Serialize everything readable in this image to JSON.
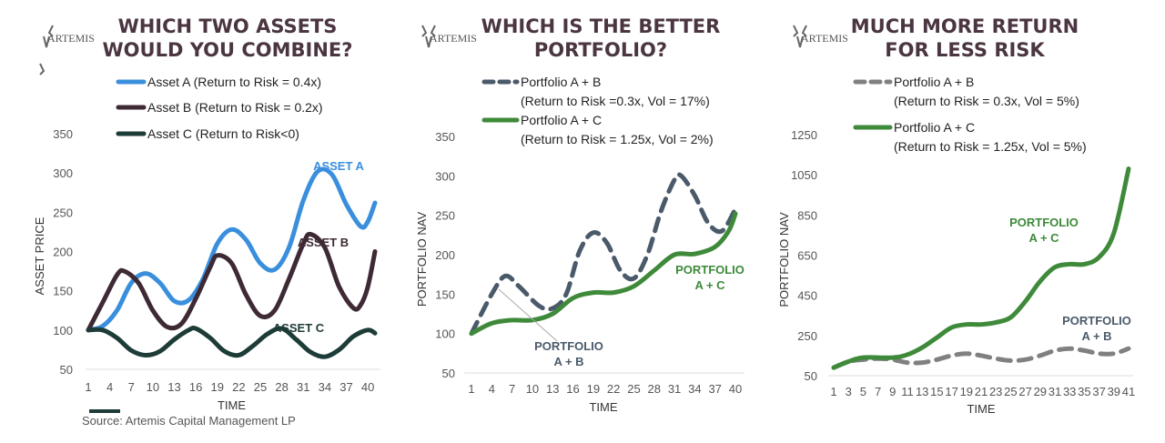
{
  "brand": "ARTEMIS",
  "source": "Source:  Artemis  Capital  Management  LP",
  "chart_data": [
    {
      "type": "line",
      "title": [
        "WHICH TWO ASSETS",
        "WOULD YOU COMBINE?"
      ],
      "xlabel": "TIME",
      "ylabel": "ASSET PRICE",
      "ylim": [
        50,
        350
      ],
      "yticks": [
        50,
        100,
        150,
        200,
        250,
        300,
        350
      ],
      "xticks": [
        1,
        4,
        7,
        10,
        13,
        16,
        19,
        22,
        25,
        28,
        31,
        34,
        37,
        40
      ],
      "xlim": [
        1,
        41
      ],
      "series": [
        {
          "name": "Asset A (Return to Risk = 0.4x)",
          "label": "ASSET A",
          "color": "#3a8fdd",
          "dash": false,
          "points": [
            [
              1,
              100
            ],
            [
              3,
              105
            ],
            [
              5,
              125
            ],
            [
              7,
              160
            ],
            [
              9,
              172
            ],
            [
              11,
              160
            ],
            [
              13,
              137
            ],
            [
              15,
              138
            ],
            [
              17,
              165
            ],
            [
              19,
              210
            ],
            [
              21,
              228
            ],
            [
              23,
              215
            ],
            [
              25,
              185
            ],
            [
              27,
              177
            ],
            [
              29,
              205
            ],
            [
              31,
              265
            ],
            [
              33,
              302
            ],
            [
              35,
              298
            ],
            [
              37,
              260
            ],
            [
              39,
              232
            ],
            [
              40,
              238
            ],
            [
              41,
              262
            ]
          ]
        },
        {
          "name": "Asset B (Return to Risk = 0.2x)",
          "label": "ASSET B",
          "color": "#3e2a35",
          "dash": false,
          "points": [
            [
              1,
              100
            ],
            [
              3,
              135
            ],
            [
              5,
              170
            ],
            [
              6,
              175
            ],
            [
              8,
              160
            ],
            [
              10,
              125
            ],
            [
              12,
              104
            ],
            [
              14,
              108
            ],
            [
              16,
              140
            ],
            [
              18,
              180
            ],
            [
              19,
              195
            ],
            [
              21,
              185
            ],
            [
              23,
              145
            ],
            [
              25,
              118
            ],
            [
              27,
              125
            ],
            [
              29,
              165
            ],
            [
              31,
              210
            ],
            [
              32,
              222
            ],
            [
              34,
              205
            ],
            [
              36,
              155
            ],
            [
              38,
              128
            ],
            [
              39,
              132
            ],
            [
              40,
              155
            ],
            [
              41,
              200
            ]
          ]
        },
        {
          "name": "Asset C (Return to Risk<0)",
          "label": "ASSET C",
          "color": "#1d3b37",
          "dash": false,
          "points": [
            [
              1,
              100
            ],
            [
              3,
              100
            ],
            [
              5,
              90
            ],
            [
              7,
              74
            ],
            [
              9,
              68
            ],
            [
              11,
              73
            ],
            [
              13,
              88
            ],
            [
              15,
              100
            ],
            [
              16,
              102
            ],
            [
              18,
              90
            ],
            [
              20,
              73
            ],
            [
              22,
              68
            ],
            [
              24,
              80
            ],
            [
              26,
              95
            ],
            [
              28,
              102
            ],
            [
              30,
              88
            ],
            [
              32,
              72
            ],
            [
              34,
              66
            ],
            [
              36,
              75
            ],
            [
              38,
              92
            ],
            [
              40,
              100
            ],
            [
              41,
              96
            ]
          ]
        }
      ]
    },
    {
      "type": "line",
      "title": [
        "WHICH IS THE BETTER",
        "PORTFOLIO?"
      ],
      "xlabel": "TIME",
      "ylabel": "PORTFOLIO NAV",
      "ylim": [
        50,
        350
      ],
      "yticks": [
        50,
        100,
        150,
        200,
        250,
        300,
        350
      ],
      "xticks": [
        1,
        4,
        7,
        10,
        13,
        16,
        19,
        22,
        25,
        28,
        31,
        34,
        37,
        40
      ],
      "xlim": [
        1,
        40
      ],
      "series": [
        {
          "name": "Portfolio A + B",
          "name2": "(Return to Risk =0.3x, Vol = 17%)",
          "label": [
            "PORTFOLIO",
            "A + B"
          ],
          "color": "#4a5a6a",
          "dash": true,
          "points": [
            [
              1,
              100
            ],
            [
              4,
              150
            ],
            [
              6,
              173
            ],
            [
              8,
              160
            ],
            [
              11,
              135
            ],
            [
              13,
              132
            ],
            [
              15,
              150
            ],
            [
              17,
              205
            ],
            [
              19,
              228
            ],
            [
              21,
              215
            ],
            [
              23,
              180
            ],
            [
              25,
              170
            ],
            [
              27,
              200
            ],
            [
              29,
              255
            ],
            [
              31,
              295
            ],
            [
              32,
              300
            ],
            [
              34,
              275
            ],
            [
              36,
              240
            ],
            [
              38,
              230
            ],
            [
              40,
              258
            ]
          ]
        },
        {
          "name": "Portfolio A + C",
          "name2": "(Return to Risk = 1.25x, Vol = 2%)",
          "label": [
            "PORTFOLIO",
            "A + C"
          ],
          "color": "#3e8a3a",
          "dash": false,
          "points": [
            [
              1,
              100
            ],
            [
              4,
              113
            ],
            [
              7,
              117
            ],
            [
              10,
              117
            ],
            [
              13,
              125
            ],
            [
              16,
              145
            ],
            [
              19,
              152
            ],
            [
              22,
              152
            ],
            [
              25,
              160
            ],
            [
              28,
              180
            ],
            [
              31,
              200
            ],
            [
              34,
              201
            ],
            [
              37,
              210
            ],
            [
              39,
              230
            ],
            [
              40,
              252
            ]
          ]
        }
      ]
    },
    {
      "type": "line",
      "title": [
        "MUCH MORE RETURN",
        "FOR LESS RISK"
      ],
      "xlabel": "TIME",
      "ylabel": "PORTFOLIO NAV",
      "ylim": [
        50,
        1250
      ],
      "yticks": [
        50,
        250,
        450,
        650,
        850,
        1050,
        1250
      ],
      "xticks": [
        1,
        3,
        5,
        7,
        9,
        11,
        13,
        15,
        17,
        19,
        21,
        23,
        25,
        27,
        29,
        31,
        33,
        35,
        37,
        39,
        41
      ],
      "xlim": [
        1,
        41
      ],
      "series": [
        {
          "name": "Portfolio A + B",
          "name2": "(Return to Risk = 0.3x, Vol = 5%)",
          "label": [
            "PORTFOLIO",
            "A + B"
          ],
          "color": "#808080",
          "dash": true,
          "points": [
            [
              1,
              90
            ],
            [
              3,
              120
            ],
            [
              5,
              130
            ],
            [
              7,
              135
            ],
            [
              9,
              130
            ],
            [
              11,
              115
            ],
            [
              13,
              115
            ],
            [
              15,
              130
            ],
            [
              17,
              150
            ],
            [
              19,
              160
            ],
            [
              21,
              150
            ],
            [
              23,
              135
            ],
            [
              25,
              125
            ],
            [
              27,
              130
            ],
            [
              29,
              150
            ],
            [
              31,
              175
            ],
            [
              33,
              185
            ],
            [
              35,
              175
            ],
            [
              37,
              160
            ],
            [
              39,
              160
            ],
            [
              41,
              185
            ]
          ]
        },
        {
          "name": "Portfolio A + C",
          "name2": "(Return to Risk = 1.25x, Vol = 5%)",
          "label": [
            "PORTFOLIO",
            "A + C"
          ],
          "color": "#3e8a3a",
          "dash": false,
          "points": [
            [
              1,
              90
            ],
            [
              3,
              120
            ],
            [
              5,
              140
            ],
            [
              9,
              140
            ],
            [
              11,
              155
            ],
            [
              13,
              190
            ],
            [
              15,
              240
            ],
            [
              17,
              290
            ],
            [
              19,
              305
            ],
            [
              21,
              305
            ],
            [
              23,
              315
            ],
            [
              25,
              340
            ],
            [
              27,
              420
            ],
            [
              29,
              520
            ],
            [
              31,
              590
            ],
            [
              33,
              605
            ],
            [
              35,
              605
            ],
            [
              37,
              640
            ],
            [
              39,
              760
            ],
            [
              41,
              1080
            ]
          ]
        }
      ]
    }
  ]
}
